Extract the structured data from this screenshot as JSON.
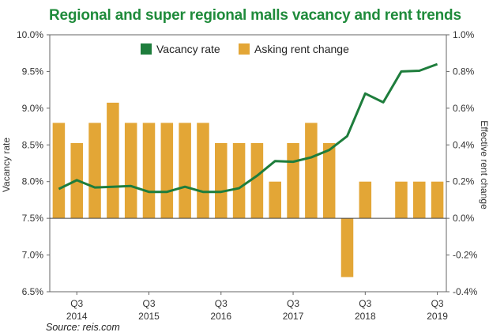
{
  "title": "Regional and super regional malls vacancy and rent trends",
  "source": "Source: reis.com",
  "colors": {
    "title": "#1f8b3b",
    "line": "#1e7d3c",
    "bar": "#e3a636",
    "frame": "#666666"
  },
  "chart_data": {
    "type": "bar+line",
    "legend_position": "top-center",
    "grid": false,
    "left_axis": {
      "label": "Vacancy rate",
      "ylim": [
        6.5,
        10.0
      ],
      "ticks": [
        10.0,
        9.5,
        9.0,
        8.5,
        8.0,
        7.5,
        7.0,
        6.5
      ],
      "tick_labels": [
        "10.0%",
        "9.5%",
        "9.0%",
        "8.5%",
        "8.0%",
        "7.5%",
        "7.0%",
        "6.5%"
      ]
    },
    "right_axis": {
      "label": "Effective rent change",
      "ylim": [
        -0.4,
        1.0
      ],
      "ticks": [
        1.0,
        0.8,
        0.6,
        0.4,
        0.2,
        0.0,
        -0.2,
        -0.4
      ],
      "tick_labels": [
        "1.0%",
        "0.8%",
        "0.6%",
        "0.4%",
        "0.2%",
        "0.0%",
        "-0.2%",
        "-0.4%"
      ]
    },
    "x_axis": {
      "ticks": [
        {
          "index": 1,
          "q": "Q3",
          "year": "2014"
        },
        {
          "index": 5,
          "q": "Q3",
          "year": "2015"
        },
        {
          "index": 9,
          "q": "Q3",
          "year": "2016"
        },
        {
          "index": 13,
          "q": "Q3",
          "year": "2017"
        },
        {
          "index": 17,
          "q": "Q3",
          "year": "2018"
        },
        {
          "index": 21,
          "q": "Q3",
          "year": "2019"
        }
      ]
    },
    "series": [
      {
        "name": "Vacancy rate",
        "type": "line",
        "axis": "left",
        "values": [
          7.9,
          8.02,
          7.92,
          7.93,
          7.94,
          7.86,
          7.86,
          7.93,
          7.86,
          7.86,
          7.91,
          8.08,
          8.28,
          8.27,
          8.33,
          8.43,
          8.62,
          9.2,
          9.08,
          9.5,
          9.51,
          9.6
        ]
      },
      {
        "name": "Asking rent change",
        "type": "bar",
        "axis": "right",
        "values": [
          0.52,
          0.41,
          0.52,
          0.63,
          0.52,
          0.52,
          0.52,
          0.52,
          0.52,
          0.41,
          0.41,
          0.41,
          0.2,
          0.41,
          0.52,
          0.41,
          -0.32,
          0.2,
          0.0,
          0.2,
          0.2,
          0.2
        ]
      }
    ]
  }
}
